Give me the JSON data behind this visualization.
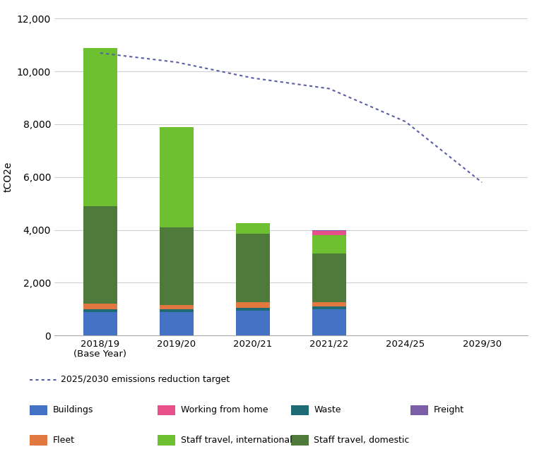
{
  "categories": [
    "2018/19\n(Base Year)",
    "2019/20",
    "2020/21",
    "2021/22",
    "2024/25",
    "2029/30"
  ],
  "segments": {
    "Buildings": [
      900,
      900,
      950,
      1000
    ],
    "Waste": [
      100,
      100,
      100,
      100
    ],
    "Fleet": [
      200,
      150,
      200,
      150
    ],
    "Staff_travel_domestic": [
      3700,
      2950,
      2600,
      1850
    ],
    "Staff_travel_international": [
      6000,
      3800,
      400,
      700
    ],
    "Working_from_home": [
      0,
      0,
      0,
      160
    ],
    "Freight": [
      0,
      0,
      0,
      30
    ]
  },
  "colors": {
    "Buildings": "#4472C4",
    "Waste": "#1F6B75",
    "Fleet": "#E07840",
    "Staff_travel_domestic": "#4E7A3C",
    "Staff_travel_international": "#6DC030",
    "Working_from_home": "#E8508C",
    "Freight": "#7B5EA7"
  },
  "target_line_x": [
    0,
    1,
    2,
    3,
    4,
    5
  ],
  "target_line_y": [
    10700,
    10350,
    9750,
    9350,
    8100,
    5800
  ],
  "target_line_color": "#5B5EA6",
  "ylabel": "tCO2e",
  "ylim": [
    0,
    12000
  ],
  "yticks": [
    0,
    2000,
    4000,
    6000,
    8000,
    10000,
    12000
  ],
  "legend_target_label": "2025/2030 emissions reduction target",
  "legend_items": [
    {
      "label": "Buildings",
      "color": "#4472C4"
    },
    {
      "label": "Working from home",
      "color": "#E8508C"
    },
    {
      "label": "Waste",
      "color": "#1F6B75"
    },
    {
      "label": "Freight",
      "color": "#7B5EA7"
    },
    {
      "label": "Fleet",
      "color": "#E07840"
    },
    {
      "label": "Staff travel, international",
      "color": "#6DC030"
    },
    {
      "label": "Staff travel, domestic",
      "color": "#4E7A3C"
    }
  ],
  "bar_width": 0.45,
  "figsize": [
    7.7,
    6.6
  ],
  "dpi": 100
}
